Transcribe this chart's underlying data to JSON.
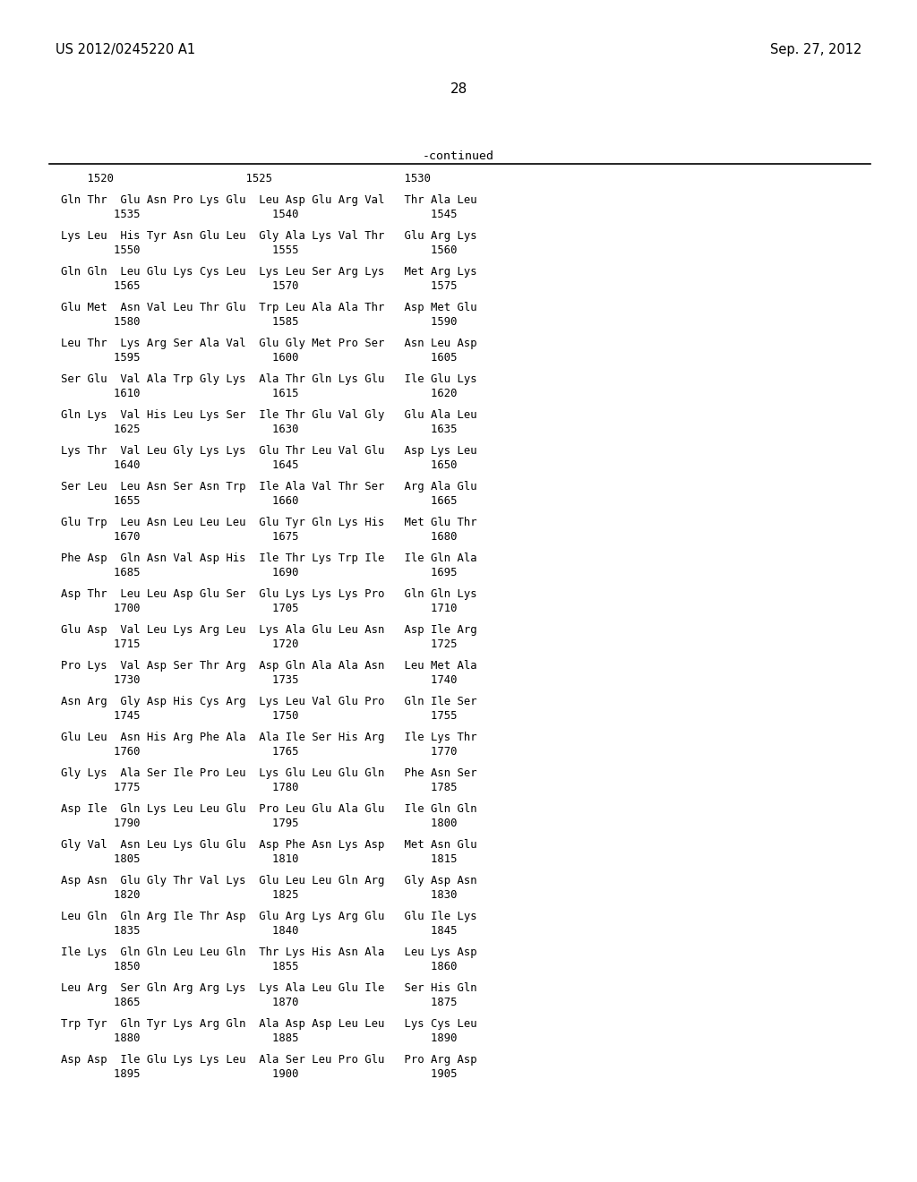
{
  "header_left": "US 2012/0245220 A1",
  "header_right": "Sep. 27, 2012",
  "page_number": "28",
  "continued_label": "-continued",
  "bg_color": "#ffffff",
  "text_color": "#000000",
  "line_groups": [
    [
      "    1520                    1525                    1530",
      "Gln Thr  Glu Asn Pro Lys Glu  Leu Asp Glu Arg Val   Thr Ala Leu",
      "        1535                    1540                    1545"
    ],
    [
      "Lys Leu  His Tyr Asn Glu Leu  Gly Ala Lys Val Thr   Glu Arg Lys",
      "        1550                    1555                    1560"
    ],
    [
      "Gln Gln  Leu Glu Lys Cys Leu  Lys Leu Ser Arg Lys   Met Arg Lys",
      "        1565                    1570                    1575"
    ],
    [
      "Glu Met  Asn Val Leu Thr Glu  Trp Leu Ala Ala Thr   Asp Met Glu",
      "        1580                    1585                    1590"
    ],
    [
      "Leu Thr  Lys Arg Ser Ala Val  Glu Gly Met Pro Ser   Asn Leu Asp",
      "        1595                    1600                    1605"
    ],
    [
      "Ser Glu  Val Ala Trp Gly Lys  Ala Thr Gln Lys Glu   Ile Glu Lys",
      "        1610                    1615                    1620"
    ],
    [
      "Gln Lys  Val His Leu Lys Ser  Ile Thr Glu Val Gly   Glu Ala Leu",
      "        1625                    1630                    1635"
    ],
    [
      "Lys Thr  Val Leu Gly Lys Lys  Glu Thr Leu Val Glu   Asp Lys Leu",
      "        1640                    1645                    1650"
    ],
    [
      "Ser Leu  Leu Asn Ser Asn Trp  Ile Ala Val Thr Ser   Arg Ala Glu",
      "        1655                    1660                    1665"
    ],
    [
      "Glu Trp  Leu Asn Leu Leu Leu  Glu Tyr Gln Lys His   Met Glu Thr",
      "        1670                    1675                    1680"
    ],
    [
      "Phe Asp  Gln Asn Val Asp His  Ile Thr Lys Trp Ile   Ile Gln Ala",
      "        1685                    1690                    1695"
    ],
    [
      "Asp Thr  Leu Leu Asp Glu Ser  Glu Lys Lys Lys Pro   Gln Gln Lys",
      "        1700                    1705                    1710"
    ],
    [
      "Glu Asp  Val Leu Lys Arg Leu  Lys Ala Glu Leu Asn   Asp Ile Arg",
      "        1715                    1720                    1725"
    ],
    [
      "Pro Lys  Val Asp Ser Thr Arg  Asp Gln Ala Ala Asn   Leu Met Ala",
      "        1730                    1735                    1740"
    ],
    [
      "Asn Arg  Gly Asp His Cys Arg  Lys Leu Val Glu Pro   Gln Ile Ser",
      "        1745                    1750                    1755"
    ],
    [
      "Glu Leu  Asn His Arg Phe Ala  Ala Ile Ser His Arg   Ile Lys Thr",
      "        1760                    1765                    1770"
    ],
    [
      "Gly Lys  Ala Ser Ile Pro Leu  Lys Glu Leu Glu Gln   Phe Asn Ser",
      "        1775                    1780                    1785"
    ],
    [
      "Asp Ile  Gln Lys Leu Leu Glu  Pro Leu Glu Ala Glu   Ile Gln Gln",
      "        1790                    1795                    1800"
    ],
    [
      "Gly Val  Asn Leu Lys Glu Glu  Asp Phe Asn Lys Asp   Met Asn Glu",
      "        1805                    1810                    1815"
    ],
    [
      "Asp Asn  Glu Gly Thr Val Lys  Glu Leu Leu Gln Arg   Gly Asp Asn",
      "        1820                    1825                    1830"
    ],
    [
      "Leu Gln  Gln Arg Ile Thr Asp  Glu Arg Lys Arg Glu   Glu Ile Lys",
      "        1835                    1840                    1845"
    ],
    [
      "Ile Lys  Gln Gln Leu Leu Gln  Thr Lys His Asn Ala   Leu Lys Asp",
      "        1850                    1855                    1860"
    ],
    [
      "Leu Arg  Ser Gln Arg Arg Lys  Lys Ala Leu Glu Ile   Ser His Gln",
      "        1865                    1870                    1875"
    ],
    [
      "Trp Tyr  Gln Tyr Lys Arg Gln  Ala Asp Asp Leu Leu   Lys Cys Leu",
      "        1880                    1885                    1890"
    ],
    [
      "Asp Asp  Ile Glu Lys Lys Leu  Ala Ser Leu Pro Glu   Pro Arg Asp",
      "        1895                    1900                    1905"
    ]
  ]
}
